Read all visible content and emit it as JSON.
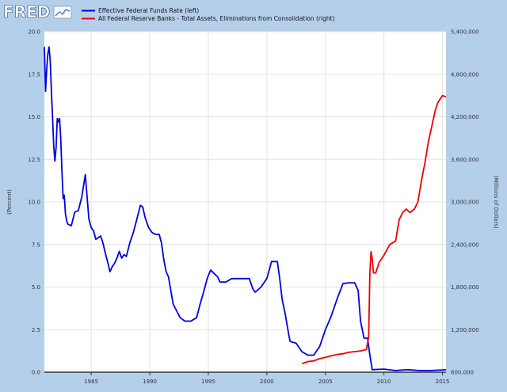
{
  "brand": {
    "logo_text": "FRED",
    "logo_icon": "line-chart-icon"
  },
  "colors": {
    "background": "#b4cfea",
    "plot_bg": "#ffffff",
    "grid": "#e3e3e3",
    "series_ffr": "#0000dd",
    "series_assets": "#ee0000"
  },
  "chart_data": {
    "type": "line",
    "title": "",
    "xlabel": "",
    "ylabel_left": "(Percent)",
    "ylabel_right": "(Millions of Dollars)",
    "xlim": [
      1981.0,
      2015.3
    ],
    "ylim_left": [
      0,
      20
    ],
    "ylim_right": [
      600000,
      5400000
    ],
    "x_ticks": [
      1985,
      1990,
      1995,
      2000,
      2005,
      2010,
      2015
    ],
    "y_ticks_left": [
      "0.0",
      "2.5",
      "5.0",
      "7.5",
      "10.0",
      "12.5",
      "15.0",
      "17.5",
      "20.0"
    ],
    "y_ticks_right": [
      "600,000",
      "1,200,000",
      "1,800,000",
      "2,400,000",
      "3,000,000",
      "3,600,000",
      "4,200,000",
      "4,800,000",
      "5,400,000"
    ],
    "grid": true,
    "legend_position": "top-left",
    "series": [
      {
        "name": "Effective Federal Funds Rate (left)",
        "axis": "left",
        "x": [
          1981.0,
          1981.1,
          1981.2,
          1981.3,
          1981.4,
          1981.5,
          1981.6,
          1981.7,
          1981.8,
          1981.9,
          1982.0,
          1982.1,
          1982.2,
          1982.3,
          1982.4,
          1982.5,
          1982.6,
          1982.7,
          1982.8,
          1982.9,
          1983.0,
          1983.3,
          1983.6,
          1983.9,
          1984.2,
          1984.5,
          1984.8,
          1985.0,
          1985.2,
          1985.4,
          1985.6,
          1985.8,
          1986.0,
          1986.2,
          1986.4,
          1986.6,
          1986.8,
          1987.0,
          1987.2,
          1987.4,
          1987.6,
          1987.8,
          1988.0,
          1988.3,
          1988.6,
          1988.9,
          1989.2,
          1989.4,
          1989.6,
          1989.9,
          1990.2,
          1990.5,
          1990.8,
          1991.0,
          1991.2,
          1991.4,
          1991.6,
          1991.8,
          1992.0,
          1992.3,
          1992.6,
          1993.0,
          1993.5,
          1994.0,
          1994.3,
          1994.6,
          1994.9,
          1995.2,
          1995.5,
          1995.8,
          1996.0,
          1996.5,
          1997.0,
          1997.5,
          1998.0,
          1998.5,
          1998.8,
          1999.0,
          1999.5,
          2000.0,
          2000.4,
          2000.9,
          2001.1,
          2001.3,
          2001.6,
          2001.9,
          2002.0,
          2002.5,
          2003.0,
          2003.5,
          2004.0,
          2004.5,
          2005.0,
          2005.5,
          2006.0,
          2006.5,
          2007.0,
          2007.5,
          2007.8,
          2008.0,
          2008.3,
          2008.6,
          2008.8,
          2009.0,
          2010.0,
          2011.0,
          2012.0,
          2013.0,
          2014.0,
          2015.0,
          2015.3
        ],
        "y": [
          19.1,
          16.5,
          17.8,
          18.7,
          19.1,
          18.3,
          16.5,
          15.0,
          13.3,
          12.4,
          13.2,
          14.9,
          14.7,
          14.9,
          13.7,
          11.8,
          10.2,
          10.4,
          9.3,
          8.9,
          8.7,
          8.6,
          9.4,
          9.5,
          10.3,
          11.6,
          9.0,
          8.5,
          8.3,
          7.8,
          7.9,
          8.0,
          7.6,
          7.0,
          6.5,
          5.9,
          6.2,
          6.4,
          6.7,
          7.1,
          6.7,
          6.9,
          6.8,
          7.6,
          8.2,
          9.0,
          9.8,
          9.7,
          9.1,
          8.5,
          8.2,
          8.1,
          8.1,
          7.6,
          6.6,
          5.9,
          5.6,
          4.8,
          4.0,
          3.6,
          3.2,
          3.0,
          3.0,
          3.2,
          4.0,
          4.7,
          5.5,
          6.0,
          5.8,
          5.6,
          5.3,
          5.3,
          5.5,
          5.5,
          5.5,
          5.5,
          4.9,
          4.7,
          5.0,
          5.5,
          6.5,
          6.5,
          5.5,
          4.3,
          3.3,
          2.1,
          1.8,
          1.7,
          1.2,
          1.0,
          1.0,
          1.5,
          2.5,
          3.3,
          4.3,
          5.2,
          5.25,
          5.25,
          4.8,
          3.0,
          2.0,
          2.0,
          1.0,
          0.15,
          0.18,
          0.1,
          0.15,
          0.1,
          0.1,
          0.13,
          0.14
        ]
      },
      {
        "name": "All Federal Reserve Banks - Total Assets, Eliminations from Consolidation (right)",
        "axis": "right",
        "x": [
          2003.0,
          2003.5,
          2004.0,
          2004.5,
          2005.0,
          2005.5,
          2006.0,
          2006.5,
          2007.0,
          2007.5,
          2008.0,
          2008.5,
          2008.7,
          2008.8,
          2008.9,
          2009.0,
          2009.1,
          2009.3,
          2009.6,
          2009.8,
          2010.0,
          2010.5,
          2011.0,
          2011.3,
          2011.6,
          2011.9,
          2012.2,
          2012.6,
          2012.9,
          2013.2,
          2013.5,
          2013.8,
          2014.0,
          2014.2,
          2014.4,
          2014.6,
          2014.8,
          2015.0,
          2015.3
        ],
        "y": [
          720000,
          750000,
          760000,
          790000,
          810000,
          830000,
          850000,
          860000,
          880000,
          890000,
          900000,
          920000,
          1100000,
          2000000,
          2300000,
          2200000,
          2000000,
          2000000,
          2150000,
          2200000,
          2250000,
          2400000,
          2450000,
          2750000,
          2850000,
          2900000,
          2850000,
          2900000,
          3000000,
          3300000,
          3550000,
          3850000,
          4000000,
          4150000,
          4300000,
          4400000,
          4450000,
          4500000,
          4480000
        ]
      }
    ]
  }
}
